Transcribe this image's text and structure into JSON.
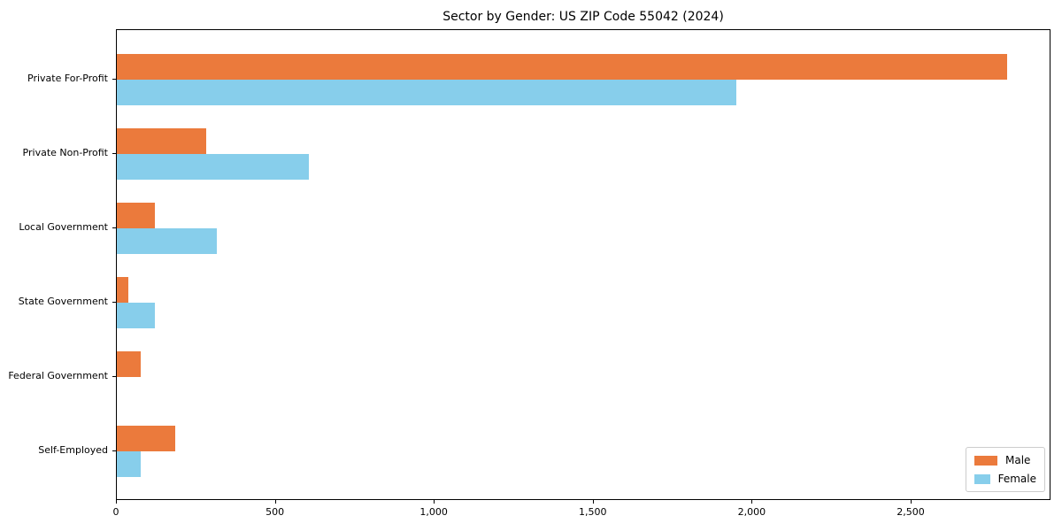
{
  "figure": {
    "title": "Sector by Gender: US ZIP Code 55042 (2024)"
  },
  "chart_data": {
    "type": "bar",
    "orientation": "horizontal",
    "title": "Sector by Gender: US ZIP Code 55042 (2024)",
    "categories": [
      "Private For-Profit",
      "Private Non-Profit",
      "Local Government",
      "State Government",
      "Federal Government",
      "Self-Employed"
    ],
    "series": [
      {
        "name": "Male",
        "color": "#EB7A3C",
        "values": [
          2800,
          280,
          120,
          35,
          75,
          185
        ]
      },
      {
        "name": "Female",
        "color": "#87CEEB",
        "values": [
          1950,
          605,
          315,
          120,
          0,
          75
        ]
      }
    ],
    "xlabel": "",
    "ylabel": "",
    "xlim": [
      0,
      2940
    ],
    "xticks": [
      0,
      500,
      1000,
      1500,
      2000,
      2500
    ],
    "xtick_labels": [
      "0",
      "500",
      "1,000",
      "1,500",
      "2,000",
      "2,500"
    ],
    "grid": false,
    "legend": {
      "position": "lower right"
    },
    "colors": {
      "male": "#EB7A3C",
      "female": "#87CEEB",
      "spine": "#000000",
      "legend_border": "#cccccc"
    }
  }
}
